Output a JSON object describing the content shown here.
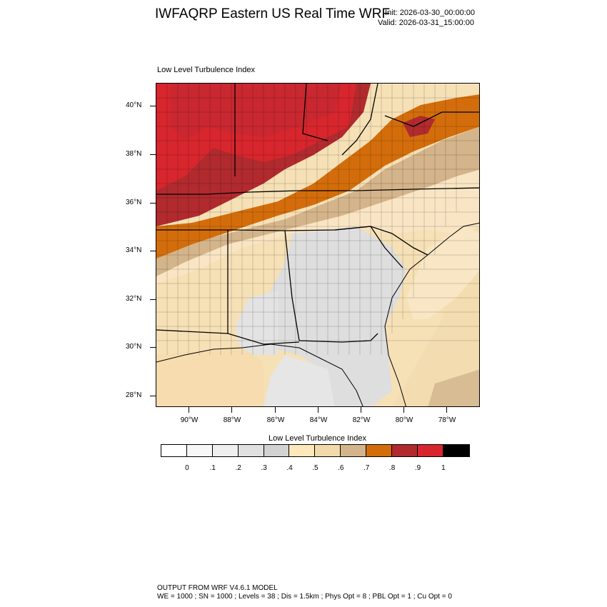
{
  "header": {
    "title": "IWFAQRP Eastern US Real Time WRF",
    "init": "Init: 2026-03-30_00:00:00",
    "valid": "Valid: 2026-03-31_15:00:00"
  },
  "panel": {
    "label": "Low Level Turbulence Index"
  },
  "map": {
    "lat_labels": [
      "40°N",
      "38°N",
      "36°N",
      "34°N",
      "32°N",
      "30°N",
      "28°N"
    ],
    "lon_labels": [
      "90°W",
      "88°W",
      "86°W",
      "84°W",
      "82°W",
      "80°W",
      "78°W"
    ]
  },
  "colorbar": {
    "title": "Low Level Turbulence Index",
    "colors": [
      "#ffffff",
      "#f7f7f7",
      "#efefef",
      "#e0e0e0",
      "#d2d2d2",
      "#fce8bb",
      "#f2d9ac",
      "#d4b48a",
      "#d36d0b",
      "#b02a2e",
      "#d7262d",
      "#000000"
    ],
    "tick_labels": [
      "0",
      ".1",
      ".2",
      ".3",
      ".4",
      ".5",
      ".6",
      ".7",
      ".8",
      ".9",
      "1"
    ]
  },
  "footer": {
    "line1": "OUTPUT FROM WRF V4.6.1 MODEL",
    "line2": "WE = 1000 ; SN = 1000 ; Levels = 38 ; Dis = 1.5km ; Phys Opt = 8 ; PBL Opt = 1 ; Cu Opt = 0"
  }
}
